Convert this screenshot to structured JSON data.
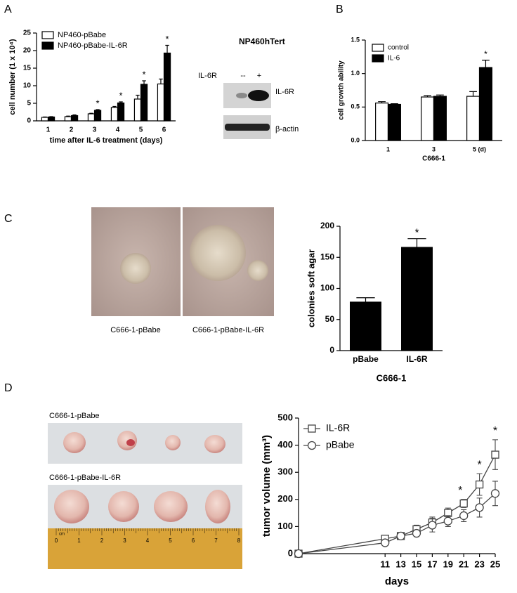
{
  "figure": {
    "panel_labels": [
      "A",
      "B",
      "C",
      "D"
    ]
  },
  "blot": {
    "title": "NP460hTert",
    "lane_header": "IL-6R",
    "lanes": [
      "--",
      "+"
    ],
    "bands": [
      "IL-6R",
      "β-actin"
    ]
  },
  "colony_photos": {
    "captions": [
      "C666-1-pBabe",
      "C666-1-pBabe-IL-6R"
    ]
  },
  "tumor_photos": {
    "captions": [
      "C666-1-pBabe",
      "C666-1-pBabe-IL-6R"
    ],
    "ruler_unit": "cm",
    "ruler_labels": [
      "0",
      "1",
      "2",
      "3",
      "4",
      "5",
      "6",
      "7",
      "8"
    ]
  },
  "chart_data": [
    {
      "type": "bar",
      "ylabel": "cell number (1 x 10⁴)",
      "xlabel": "time after IL-6 treatment (days)",
      "categories": [
        "1",
        "2",
        "3",
        "4",
        "5",
        "6"
      ],
      "edgecolor": "#000000",
      "series": [
        {
          "name": "NP460-pBabe",
          "color": "#ffffff",
          "values": [
            1,
            1.2,
            2,
            3.8,
            6.2,
            10.5
          ],
          "errors": [
            0.1,
            0.15,
            0.15,
            0.3,
            1.1,
            1.4
          ]
        },
        {
          "name": "NP460-pBabe-IL-6R",
          "color": "#000000",
          "values": [
            1.1,
            1.5,
            3,
            5.1,
            10.4,
            19.3
          ],
          "errors": [
            0.1,
            0.2,
            0.2,
            0.3,
            1.0,
            2.2
          ]
        }
      ],
      "significance": [
        null,
        null,
        "*",
        "*",
        "*",
        "*"
      ],
      "ylim": [
        0,
        25
      ],
      "yticks": [
        0,
        5,
        10,
        15,
        20,
        25
      ],
      "grid": false,
      "legend": "upper left"
    },
    {
      "type": "bar",
      "ylabel": "cell growth ability",
      "xlabel": "C666-1",
      "categories": [
        "1",
        "3",
        "5 (d)"
      ],
      "edgecolor": "#000000",
      "series": [
        {
          "name": "control",
          "color": "#ffffff",
          "values": [
            0.56,
            0.65,
            0.66
          ],
          "errors": [
            0.02,
            0.02,
            0.07
          ]
        },
        {
          "name": "IL-6",
          "color": "#000000",
          "values": [
            0.54,
            0.66,
            1.09
          ],
          "errors": [
            0.01,
            0.02,
            0.11
          ]
        }
      ],
      "significance": [
        null,
        null,
        "*"
      ],
      "ylim": [
        0,
        1.5
      ],
      "yticks": [
        {
          "value": 0,
          "label": "0.0"
        },
        0.5,
        {
          "value": 1,
          "label": "1.0"
        },
        1.5
      ],
      "grid": false,
      "legend": "upper left"
    },
    {
      "type": "bar",
      "ylabel": "colonies soft agar",
      "xlabel": "C666-1",
      "categories": [
        "pBabe",
        "IL-6R"
      ],
      "color": "#000000",
      "edgecolor": "#000000",
      "values": [
        78,
        166
      ],
      "errors": [
        7,
        14
      ],
      "significance": [
        null,
        "*"
      ],
      "ylim": [
        0,
        200
      ],
      "yticks": [
        0,
        50,
        100,
        150,
        200
      ],
      "grid": false
    },
    {
      "type": "line",
      "ylabel": "tumor volume (mm³)",
      "xlabel": "days",
      "x": [
        0,
        11,
        13,
        15,
        17,
        19,
        21,
        23,
        25
      ],
      "series": [
        {
          "name": "IL-6R",
          "color": "#444444",
          "marker": "square",
          "values": [
            0,
            55,
            65,
            90,
            115,
            150,
            185,
            255,
            365
          ],
          "errors": [
            null,
            10,
            8,
            15,
            20,
            18,
            15,
            40,
            55
          ]
        },
        {
          "name": "pBabe",
          "color": "#444444",
          "marker": "circle",
          "values": [
            0,
            40,
            65,
            75,
            105,
            120,
            140,
            170,
            222
          ],
          "errors": [
            null,
            8,
            8,
            12,
            25,
            20,
            22,
            35,
            45
          ]
        }
      ],
      "significance": [
        null,
        null,
        null,
        null,
        null,
        null,
        "*",
        "*",
        "*"
      ],
      "xlim": [
        0,
        25
      ],
      "xticks": [
        11,
        13,
        15,
        17,
        19,
        21,
        23,
        25
      ],
      "ylim": [
        0,
        500
      ],
      "yticks": [
        0,
        100,
        200,
        300,
        400,
        500
      ],
      "grid": false,
      "legend": "upper left"
    }
  ]
}
